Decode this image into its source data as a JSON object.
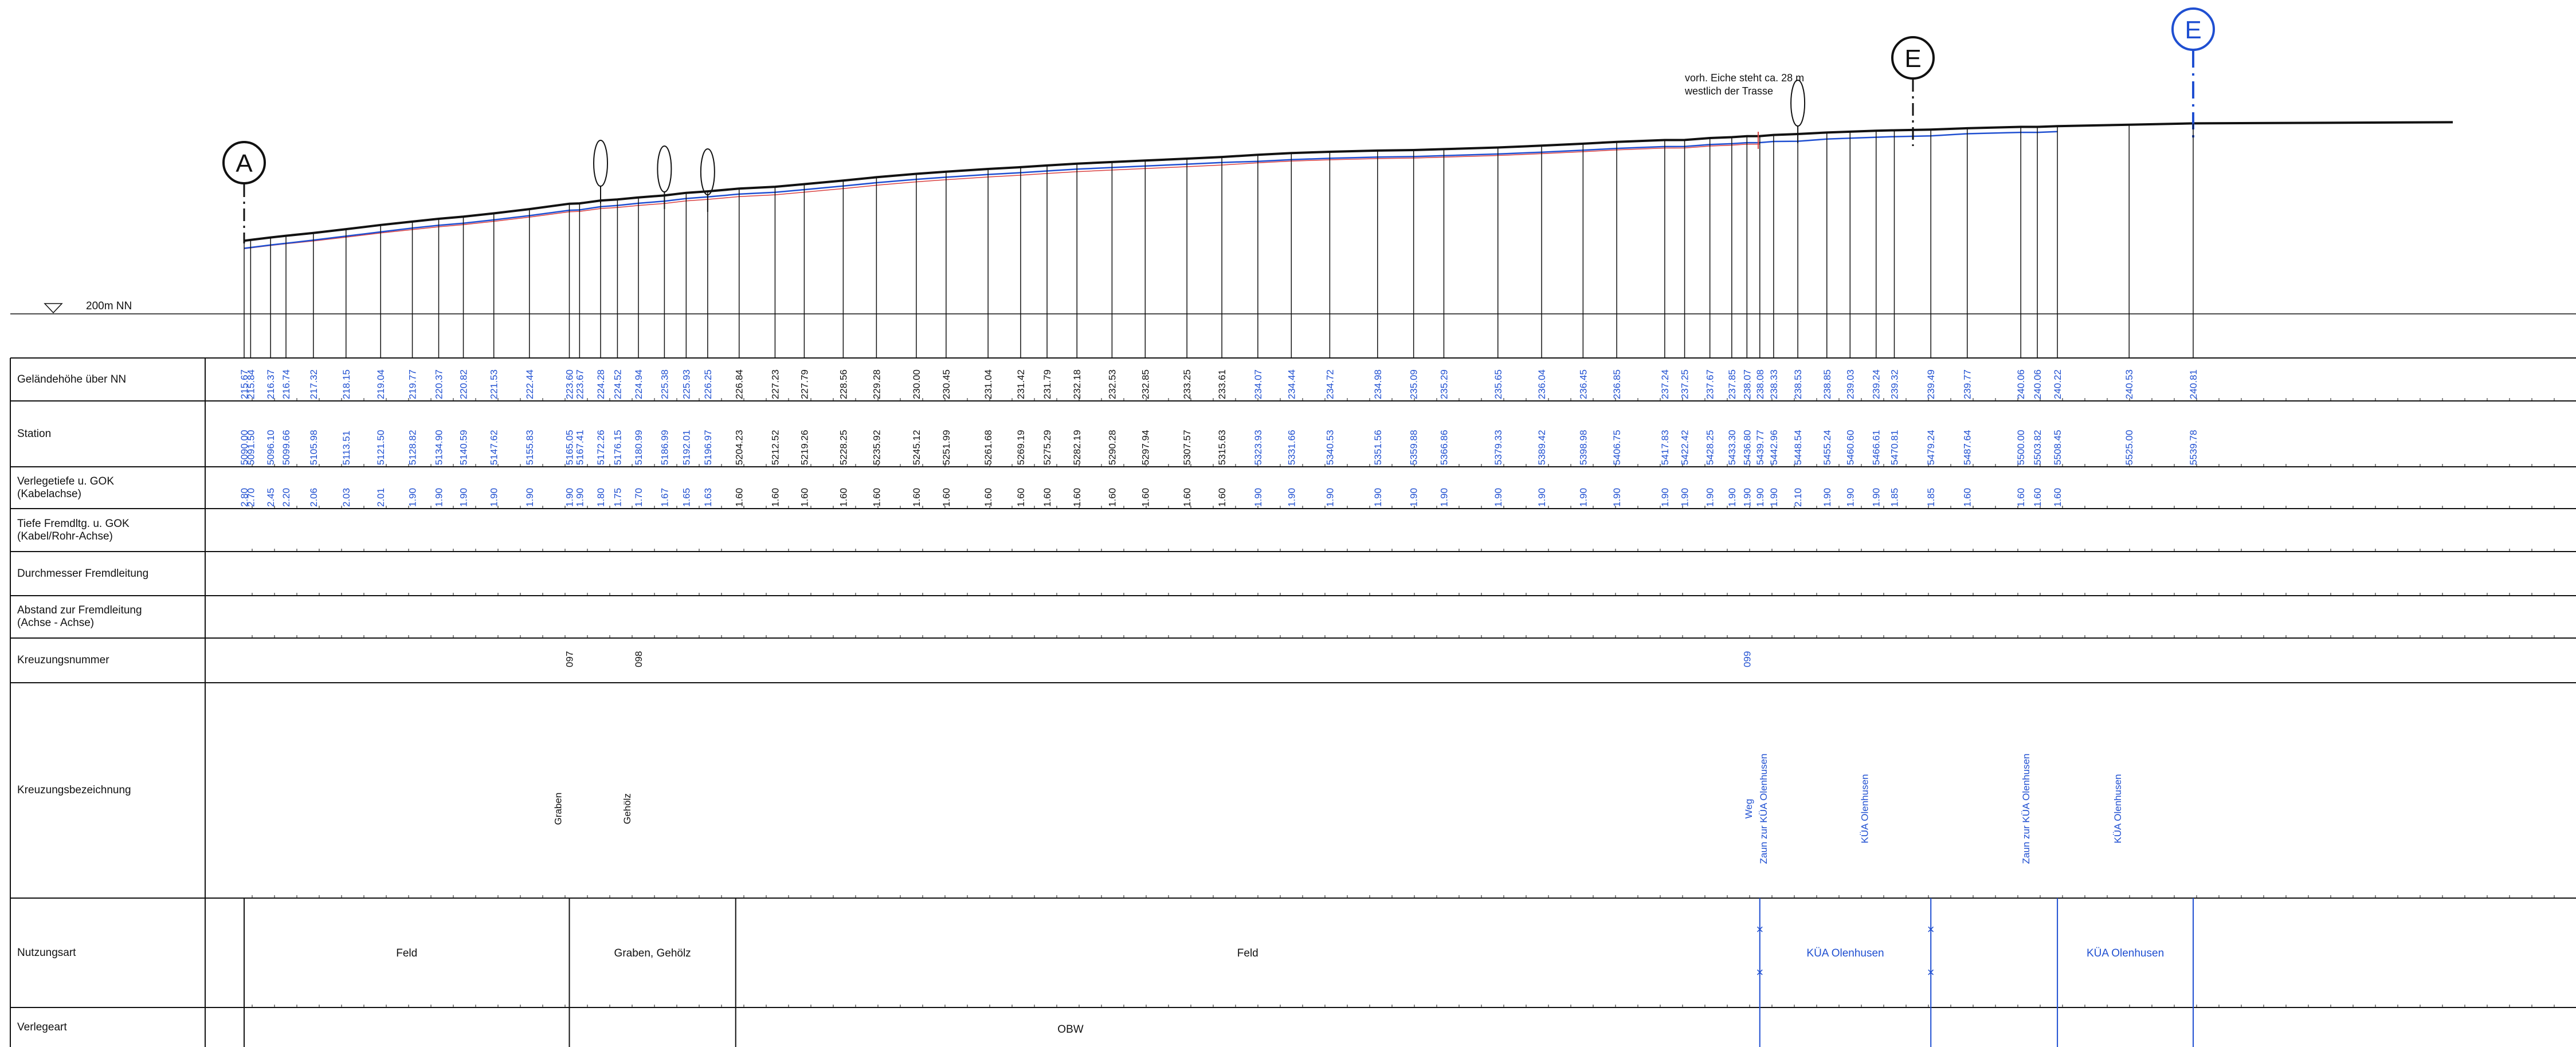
{
  "datum_label": "200m NN",
  "note_lines": [
    "vorh. Eiche steht ca. 28 m",
    "westlich der Trasse"
  ],
  "markers": [
    {
      "letter": "A",
      "color": "#111111"
    },
    {
      "letter": "E",
      "color": "#111111"
    },
    {
      "letter": "E",
      "color": "#1f4fd1"
    }
  ],
  "row_labels": [
    [
      "Geländehöhe über NN"
    ],
    [
      "Station"
    ],
    [
      "Verlegetiefe u. GOK",
      "(Kabelachse)"
    ],
    [
      "Tiefe Fremdltg. u. GOK",
      "(Kabel/Rohr-Achse)"
    ],
    [
      "Durchmesser Fremdleitung"
    ],
    [
      "Abstand zur Fremdleitung",
      "(Achse - Achse)"
    ],
    [
      "Kreuzungsnummer"
    ],
    [
      "Kreuzungsbezeichnung"
    ],
    [
      "Nutzungsart"
    ],
    [
      "Verlegeart"
    ]
  ],
  "colors": {
    "black": "#111111",
    "blue": "#1f4fd1",
    "red": "#d94040"
  },
  "chart_data": {
    "type": "line",
    "profile_columns": [
      {
        "station": "5090.00",
        "height": "215.67",
        "depth": "2.80",
        "c": "b"
      },
      {
        "station": "5091.50",
        "height": "215.84",
        "depth": "2.70",
        "c": "b"
      },
      {
        "station": "5096.10",
        "height": "216.37",
        "depth": "2.45",
        "c": "b"
      },
      {
        "station": "5099.66",
        "height": "216.74",
        "depth": "2.20",
        "c": "b"
      },
      {
        "station": "5105.98",
        "height": "217.32",
        "depth": "2.06",
        "c": "b"
      },
      {
        "station": "5113.51",
        "height": "218.15",
        "depth": "2.03",
        "c": "b"
      },
      {
        "station": "5121.50",
        "height": "219.04",
        "depth": "2.01",
        "c": "b"
      },
      {
        "station": "5128.82",
        "height": "219.77",
        "depth": "1.90",
        "c": "b"
      },
      {
        "station": "5134.90",
        "height": "220.37",
        "depth": "1.90",
        "c": "b"
      },
      {
        "station": "5140.59",
        "height": "220.82",
        "depth": "1.90",
        "c": "b"
      },
      {
        "station": "5147.62",
        "height": "221.53",
        "depth": "1.90",
        "c": "b"
      },
      {
        "station": "5155.83",
        "height": "222.44",
        "depth": "1.90",
        "c": "b"
      },
      {
        "station": "5165.05",
        "height": "223.60",
        "depth": "1.90",
        "c": "b"
      },
      {
        "station": "5167.41",
        "height": "223.67",
        "depth": "1.90",
        "c": "b"
      },
      {
        "station": "5172.26",
        "height": "224.28",
        "depth": "1.80",
        "c": "b"
      },
      {
        "station": "5176.15",
        "height": "224.52",
        "depth": "1.75",
        "c": "b"
      },
      {
        "station": "5180.99",
        "height": "224.94",
        "depth": "1.70",
        "c": "b"
      },
      {
        "station": "5186.99",
        "height": "225.38",
        "depth": "1.67",
        "c": "b"
      },
      {
        "station": "5192.01",
        "height": "225.93",
        "depth": "1.65",
        "c": "b"
      },
      {
        "station": "5196.97",
        "height": "226.25",
        "depth": "1.63",
        "c": "b"
      },
      {
        "station": "5204.23",
        "height": "226.84",
        "depth": "1.60",
        "c": "k"
      },
      {
        "station": "5212.52",
        "height": "227.23",
        "depth": "1.60",
        "c": "k"
      },
      {
        "station": "5219.26",
        "height": "227.79",
        "depth": "1.60",
        "c": "k"
      },
      {
        "station": "5228.25",
        "height": "228.56",
        "depth": "1.60",
        "c": "k"
      },
      {
        "station": "5235.92",
        "height": "229.28",
        "depth": "1.60",
        "c": "k"
      },
      {
        "station": "5245.12",
        "height": "230.00",
        "depth": "1.60",
        "c": "k"
      },
      {
        "station": "5251.99",
        "height": "230.45",
        "depth": "1.60",
        "c": "k"
      },
      {
        "station": "5261.68",
        "height": "231.04",
        "depth": "1.60",
        "c": "k"
      },
      {
        "station": "5269.19",
        "height": "231.42",
        "depth": "1.60",
        "c": "k"
      },
      {
        "station": "5275.29",
        "height": "231.79",
        "depth": "1.60",
        "c": "k"
      },
      {
        "station": "5282.19",
        "height": "232.18",
        "depth": "1.60",
        "c": "k"
      },
      {
        "station": "5290.28",
        "height": "232.53",
        "depth": "1.60",
        "c": "k"
      },
      {
        "station": "5297.94",
        "height": "232.85",
        "depth": "1.60",
        "c": "k"
      },
      {
        "station": "5307.57",
        "height": "233.25",
        "depth": "1.60",
        "c": "k"
      },
      {
        "station": "5315.63",
        "height": "233.61",
        "depth": "1.60",
        "c": "k"
      },
      {
        "station": "5323.93",
        "height": "234.07",
        "depth": "1.90",
        "c": "b"
      },
      {
        "station": "5331.66",
        "height": "234.44",
        "depth": "1.90",
        "c": "b"
      },
      {
        "station": "5340.53",
        "height": "234.72",
        "depth": "1.90",
        "c": "b"
      },
      {
        "station": "5351.56",
        "height": "234.98",
        "depth": "1.90",
        "c": "b"
      },
      {
        "station": "5359.88",
        "height": "235.09",
        "depth": "1.90",
        "c": "b"
      },
      {
        "station": "5366.86",
        "height": "235.29",
        "depth": "1.90",
        "c": "b"
      },
      {
        "station": "5379.33",
        "height": "235.65",
        "depth": "1.90",
        "c": "b"
      },
      {
        "station": "5389.42",
        "height": "236.04",
        "depth": "1.90",
        "c": "b"
      },
      {
        "station": "5398.98",
        "height": "236.45",
        "depth": "1.90",
        "c": "b"
      },
      {
        "station": "5406.75",
        "height": "236.85",
        "depth": "1.90",
        "c": "b"
      },
      {
        "station": "5417.83",
        "height": "237.24",
        "depth": "1.90",
        "c": "b"
      },
      {
        "station": "5422.42",
        "height": "237.25",
        "depth": "1.90",
        "c": "b"
      },
      {
        "station": "5428.25",
        "height": "237.67",
        "depth": "1.90",
        "c": "b"
      },
      {
        "station": "5433.30",
        "height": "237.85",
        "depth": "1.90",
        "c": "b"
      },
      {
        "station": "5436.80",
        "height": "238.07",
        "depth": "1.90",
        "c": "b"
      },
      {
        "station": "5439.77",
        "height": "238.08",
        "depth": "1.90",
        "c": "b"
      },
      {
        "station": "5442.96",
        "height": "238.33",
        "depth": "1.90",
        "c": "b"
      },
      {
        "station": "5448.54",
        "height": "238.53",
        "depth": "2.10",
        "c": "b"
      },
      {
        "station": "5455.24",
        "height": "238.85",
        "depth": "1.90",
        "c": "b"
      },
      {
        "station": "5460.60",
        "height": "239.03",
        "depth": "1.90",
        "c": "b"
      },
      {
        "station": "5466.61",
        "height": "239.24",
        "depth": "1.90",
        "c": "b"
      },
      {
        "station": "5470.81",
        "height": "239.32",
        "depth": "1.85",
        "c": "b"
      },
      {
        "station": "5479.24",
        "height": "239.49",
        "depth": "1.85",
        "c": "b"
      },
      {
        "station": "5487.64",
        "height": "239.77",
        "depth": "1.60",
        "c": "b"
      },
      {
        "station": "5500.00",
        "height": "240.06",
        "depth": "1.60",
        "c": "b"
      },
      {
        "station": "5503.82",
        "height": "240.06",
        "depth": "1.60",
        "c": "b"
      },
      {
        "station": "5508.45",
        "height": "240.22",
        "depth": "1.60",
        "c": "b"
      },
      {
        "station": "5525.00",
        "height": "240.53",
        "depth": "",
        "c": "b"
      },
      {
        "station": "5539.78",
        "height": "240.81",
        "depth": "",
        "c": "b"
      }
    ],
    "crossing_numbers": [
      {
        "station": "5165.05",
        "label": "097"
      },
      {
        "station": "5180.99",
        "label": "098"
      },
      {
        "station": "5436.80",
        "label": "099"
      }
    ],
    "crossing_labels": [
      {
        "station": "5165.05",
        "lines": [
          "Graben"
        ],
        "color": "#111111"
      },
      {
        "station": "5180.99",
        "lines": [
          "Gehölz"
        ],
        "color": "#111111"
      },
      {
        "station": "5439.77",
        "lines": [
          "Weg",
          "Zaun zur KÜA Olenhusen"
        ],
        "color": "#1f4fd1"
      },
      {
        "station": "5466.61",
        "lines": [
          "KÜA Olenhusen"
        ],
        "color": "#1f4fd1"
      },
      {
        "station": "5503.82",
        "lines": [
          "Zaun zur KÜA Olenhusen"
        ],
        "color": "#1f4fd1"
      },
      {
        "station": "5525.00",
        "lines": [
          "KÜA Olenhusen"
        ],
        "color": "#1f4fd1"
      }
    ],
    "land_use": [
      {
        "label": "Feld",
        "color": "#111111"
      },
      {
        "label": "Graben, Gehölz",
        "color": "#111111"
      },
      {
        "label": "Feld",
        "color": "#111111"
      },
      {
        "label": "KÜA Olenhusen",
        "color": "#1f4fd1"
      },
      {
        "label": "KÜA Olenhusen",
        "color": "#1f4fd1"
      }
    ],
    "laying_method": "OBW"
  }
}
